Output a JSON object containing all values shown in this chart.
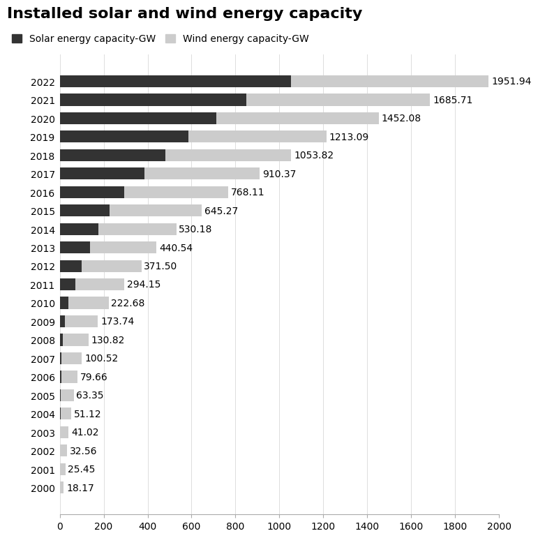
{
  "title": "Installed solar and wind energy capacity",
  "solar_label": "Solar energy capacity-GW",
  "wind_label": "Wind energy capacity-GW",
  "years": [
    2022,
    2021,
    2020,
    2019,
    2018,
    2017,
    2016,
    2015,
    2014,
    2013,
    2012,
    2011,
    2010,
    2009,
    2008,
    2007,
    2006,
    2005,
    2004,
    2003,
    2002,
    2001,
    2000
  ],
  "total_gw": [
    1951.94,
    1685.71,
    1452.08,
    1213.09,
    1053.82,
    910.37,
    768.11,
    645.27,
    530.18,
    440.54,
    371.5,
    294.15,
    222.68,
    173.74,
    130.82,
    100.52,
    79.66,
    63.35,
    51.12,
    41.02,
    32.56,
    25.45,
    18.17
  ],
  "solar_gw": [
    1053.0,
    849.0,
    714.0,
    586.0,
    480.0,
    385.0,
    295.0,
    228.0,
    177.0,
    138.0,
    100.0,
    70.0,
    40.0,
    23.0,
    13.0,
    7.6,
    6.6,
    5.1,
    3.7,
    2.7,
    2.0,
    1.5,
    1.1
  ],
  "solar_color": "#333333",
  "wind_color": "#cccccc",
  "background_color": "#ffffff",
  "xlim": [
    0,
    2000
  ],
  "xticks": [
    0,
    200,
    400,
    600,
    800,
    1000,
    1200,
    1400,
    1600,
    1800,
    2000
  ],
  "title_fontsize": 16,
  "label_fontsize": 10,
  "tick_fontsize": 10,
  "value_fontsize": 10
}
